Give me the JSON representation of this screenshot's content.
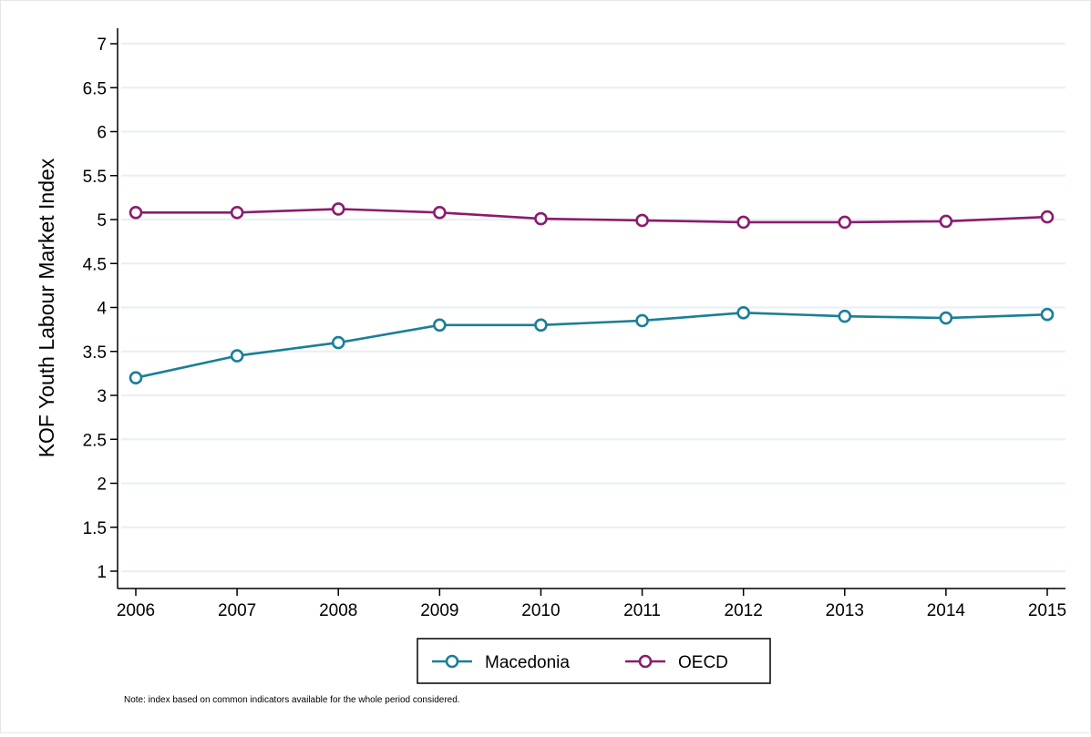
{
  "chart_data": {
    "type": "line",
    "title": "",
    "xlabel": "",
    "ylabel": "KOF Youth Labour Market Index",
    "x": [
      2006,
      2007,
      2008,
      2009,
      2010,
      2011,
      2012,
      2013,
      2014,
      2015
    ],
    "x_tick_labels": [
      "2006",
      "2007",
      "2008",
      "2009",
      "2010",
      "2011",
      "2012",
      "2013",
      "2014",
      "2015"
    ],
    "ylim": [
      1,
      7
    ],
    "y_ticks": [
      1,
      1.5,
      2,
      2.5,
      3,
      3.5,
      4,
      4.5,
      5,
      5.5,
      6,
      6.5,
      7
    ],
    "y_tick_labels": [
      "1",
      "1.5",
      "2",
      "2.5",
      "3",
      "3.5",
      "4",
      "4.5",
      "5",
      "5.5",
      "6",
      "6.5",
      "7"
    ],
    "grid": true,
    "legend_position": "bottom-center",
    "series": [
      {
        "name": "Macedonia",
        "color": "#1a7f96",
        "values": [
          3.2,
          3.45,
          3.6,
          3.8,
          3.8,
          3.85,
          3.94,
          3.9,
          3.88,
          3.92
        ]
      },
      {
        "name": "OECD",
        "color": "#8a1c6e",
        "values": [
          5.08,
          5.08,
          5.12,
          5.08,
          5.01,
          4.99,
          4.97,
          4.97,
          4.98,
          5.03
        ]
      }
    ],
    "note": "Note: index based on common indicators available for the whole period considered."
  }
}
